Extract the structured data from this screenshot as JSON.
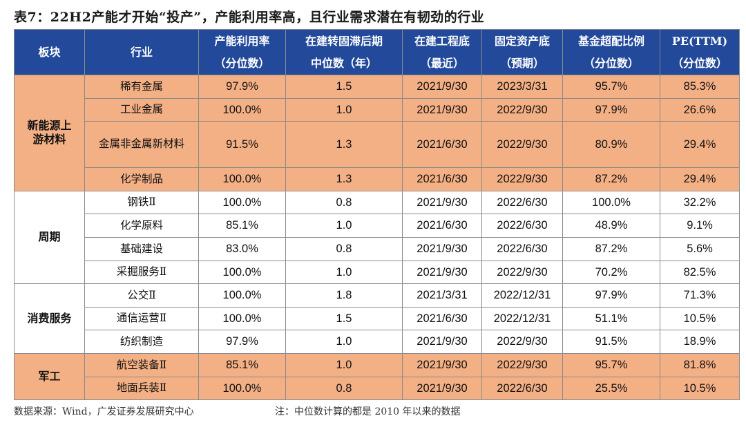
{
  "title": "表7：22H2产能才开始“投产”，产能利用率高，且行业需求潜在有韧劲的行业",
  "headers": [
    {
      "l1": "板块",
      "l2": ""
    },
    {
      "l1": "行业",
      "l2": ""
    },
    {
      "l1": "产能利用率",
      "l2": "（分位数）"
    },
    {
      "l1": "在建转固滞后期",
      "l2": "中位数（年）"
    },
    {
      "l1": "在建工程底",
      "l2": "（最近）"
    },
    {
      "l1": "固定资产底",
      "l2": "（预期）"
    },
    {
      "l1": "基金超配比例",
      "l2": "（分位数）"
    },
    {
      "l1": "PE(TTM)",
      "l2": "（分位数）"
    }
  ],
  "sectors": [
    {
      "name": "新能源上游材料"
    },
    {
      "name": "周期"
    },
    {
      "name": "消费服务"
    },
    {
      "name": "军工"
    }
  ],
  "rows": [
    {
      "industry": "稀有金属",
      "util": "97.9%",
      "lag": "1.5",
      "cip": "2021/9/30",
      "fa": "2023/3/31",
      "fund": "95.7%",
      "pe": "85.3%"
    },
    {
      "industry": "工业金属",
      "util": "100.0%",
      "lag": "1.0",
      "cip": "2021/9/30",
      "fa": "2022/9/30",
      "fund": "97.9%",
      "pe": "26.6%"
    },
    {
      "industry": "金属非金属新材料",
      "util": "91.5%",
      "lag": "1.3",
      "cip": "2021/6/30",
      "fa": "2022/9/30",
      "fund": "80.9%",
      "pe": "29.4%"
    },
    {
      "industry": "化学制品",
      "util": "100.0%",
      "lag": "1.3",
      "cip": "2021/6/30",
      "fa": "2022/9/30",
      "fund": "87.2%",
      "pe": "29.4%"
    },
    {
      "industry": "钢铁Ⅱ",
      "util": "100.0%",
      "lag": "0.8",
      "cip": "2021/9/30",
      "fa": "2022/6/30",
      "fund": "100.0%",
      "pe": "32.2%"
    },
    {
      "industry": "化学原料",
      "util": "85.1%",
      "lag": "1.0",
      "cip": "2021/6/30",
      "fa": "2022/6/30",
      "fund": "48.9%",
      "pe": "9.1%"
    },
    {
      "industry": "基础建设",
      "util": "83.0%",
      "lag": "0.8",
      "cip": "2021/9/30",
      "fa": "2022/6/30",
      "fund": "87.2%",
      "pe": "5.6%"
    },
    {
      "industry": "采掘服务Ⅱ",
      "util": "100.0%",
      "lag": "1.0",
      "cip": "2021/9/30",
      "fa": "2022/9/30",
      "fund": "70.2%",
      "pe": "82.5%"
    },
    {
      "industry": "公交Ⅱ",
      "util": "100.0%",
      "lag": "1.8",
      "cip": "2021/3/31",
      "fa": "2022/12/31",
      "fund": "97.9%",
      "pe": "71.3%"
    },
    {
      "industry": "通信运营Ⅱ",
      "util": "100.0%",
      "lag": "1.5",
      "cip": "2021/6/30",
      "fa": "2022/12/31",
      "fund": "51.1%",
      "pe": "10.5%"
    },
    {
      "industry": "纺织制造",
      "util": "97.9%",
      "lag": "1.0",
      "cip": "2021/9/30",
      "fa": "2022/9/30",
      "fund": "91.5%",
      "pe": "18.9%"
    },
    {
      "industry": "航空装备Ⅱ",
      "util": "85.1%",
      "lag": "1.0",
      "cip": "2021/9/30",
      "fa": "2022/9/30",
      "fund": "95.7%",
      "pe": "81.8%"
    },
    {
      "industry": "地面兵装Ⅱ",
      "util": "100.0%",
      "lag": "0.8",
      "cip": "2021/9/30",
      "fa": "2022/6/30",
      "fund": "25.5%",
      "pe": "10.5%"
    }
  ],
  "footer": {
    "source": "数据来源：Wind，广发证券发展研究中心",
    "note": "注：中位数计算的都是 2010 年以来的数据"
  },
  "colors": {
    "header_bg": "#22499a",
    "highlight": "#f4b085"
  }
}
